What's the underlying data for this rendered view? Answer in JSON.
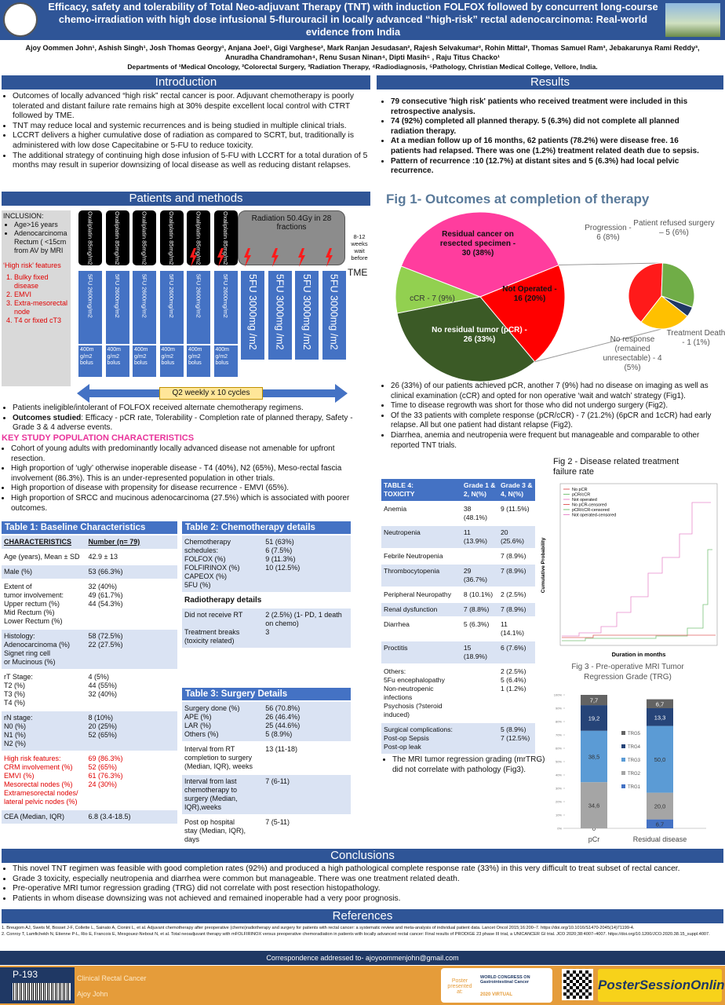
{
  "header": {
    "title": "Efficacy, safety and tolerability of Total Neo-adjuvant Therapy (TNT) with induction FOLFOX followed by concurrent long-course chemo-irradiation with high dose infusional 5-flurouracil in locally advanced “high-risk” rectal adenocarcinoma: Real-world evidence from India",
    "authors": "Ajoy Oommen John¹, Ashish Singh¹, Josh Thomas Georgy¹, Anjana Joel¹, Gigi Varghese², Mark Ranjan Jesudasan², Rajesh Selvakumar², Rohin Mittal², Thomas Samuel Ram³, Jebakarunya Rami Reddy³, Anuradha Chandramohan⁴, Renu Susan Ninan⁴, Dipti Masih⁵ , Raju Titus Chacko¹",
    "departments": "Departments of ¹Medical Oncology, ²Colorectal Surgery, ³Radiation Therapy, ⁴Radiodiagnosis, ⁵Pathology, Christian Medical College, Vellore, India."
  },
  "introduction": {
    "heading": "Introduction",
    "bullets": [
      "Outcomes of locally advanced “high risk” rectal cancer is poor. Adjuvant chemotherapy is poorly tolerated and distant failure rate remains high at 30% despite excellent local control with CTRT followed by TME.",
      "TNT may reduce local and systemic recurrences and is being studied in multiple clinical trials.",
      "LCCRT delivers a higher cumulative dose of radiation as compared to SCRT, but, traditionally is administered with low dose Capecitabine or 5-FU to reduce toxicity.",
      "The additional strategy of continuing high dose infusion of 5-FU with LCCRT for a total duration of 5 months may result in superior downsizing of local disease as well as reducing distant relapses."
    ]
  },
  "methods": {
    "heading": "Patients and methods",
    "inclusion_title": "INCLUSION:",
    "inclusion": [
      "Age>16 years",
      "Adenocarcinoma Rectum ( <15cm from AV by MRI"
    ],
    "high_risk_title": "‘High risk’ features",
    "high_risk": [
      "Bulky fixed disease",
      "EMVI",
      "Extra-mesorectal node",
      "T4 or fixed cT3"
    ],
    "oxaliplatin": [
      "Oxaliplatin 85mg/m2",
      "Oxaliplatin 85mg/m2",
      "Oxaliplatin 85mg/m2",
      "Oxaliplatin 85mg/m2",
      "Oxaliplatin 85mg/m2",
      "Oxaliplatin 85mg/m2"
    ],
    "infusion": [
      "5FU 2600mg/m2",
      "5FU 2600mg/m2",
      "5FU 2600mg/m2",
      "5FU 2600mg/m2",
      "5FU 2600mg/m2",
      "5FU 2600mg/m2"
    ],
    "bolus": [
      "400m g/m2 bolus",
      "400m g/m2 bolus",
      "400m g/m2 bolus",
      "400m g/m2 bolus",
      "400m g/m2 bolus",
      "400m g/m2 bolus"
    ],
    "radiation": "Radiation 50.4Gy in 28 fractions",
    "infusion_rt": [
      "5FU 3000mg /m2",
      "5FU 3000mg /m2",
      "5FU 3000mg /m2",
      "5FU 3000mg /m2"
    ],
    "wait": "8-12 weeks wait before",
    "tme": "TME",
    "cycles": "Q2 weekly x 10 cycles",
    "bullets": [
      "Patients ineligible/intolerant of FOLFOX received alternate chemotherapy regimens.",
      {
        "bold": "Outcomes studied",
        "text": ": Efficacy - pCR rate, Tolerability - Completion rate of planned therapy, Safety - Grade 3 & 4 adverse events."
      }
    ]
  },
  "key_characteristics": {
    "title": "KEY STUDY POPULATION CHARACTERISTICS",
    "bullets": [
      "Cohort of young adults with predominantly locally advanced disease not amenable for upfront resection.",
      "High proportion of ‘ugly’ otherwise inoperable disease - T4 (40%), N2 (65%), Meso-rectal fascia involvement (86.3%). This is an under-represented population in other trials.",
      "High proportion of disease with propensity for disease recurrence - EMVI (65%).",
      "High proportion of SRCC and mucinous adenocarcinoma (27.5%) which is associated with poorer outcomes."
    ]
  },
  "table1": {
    "title": "Table 1: Baseline Characteristics",
    "header": [
      "CHARACTERISTICS",
      "Number (n= 79)"
    ],
    "rows": [
      [
        "Age (years), Mean ± SD",
        "42.9 ± 13"
      ],
      [
        "Male (%)",
        "53 (66.3%)"
      ],
      [
        "Extent of\ntumor involvement:\nUpper rectum (%)\nMid Rectum (%)\nLower Rectum (%)",
        "32 (40%)\n49 (61.7%)\n44 (54.3%)"
      ],
      [
        "Histology:\nAdenocarcinoma (%)\nSignet ring cell\nor Mucinous (%)",
        "58 (72.5%)\n22 (27.5%)"
      ],
      [
        "rT Stage:\nT2 (%)\nT3 (%)\nT4 (%)",
        "4 (5%)\n44 (55%)\n32 (40%)"
      ],
      [
        "rN stage:\nN0 (%)\nN1 (%)\nN2 (%)",
        "8 (10%)\n20 (25%)\n52 (65%)"
      ],
      [
        "High risk features:\nCRM involvement (%)\nEMVI (%)\nMesorectal nodes (%)\nExtramesorectal nodes/\nlateral pelvic nodes (%)",
        "69 (86.3%)\n52 (65%)\n61 (76.3%)\n24 (30%)"
      ],
      [
        "CEA (Median, IQR)",
        "6.8 (3.4-18.5)"
      ]
    ]
  },
  "table2": {
    "title": "Table 2: Chemotherapy details",
    "rows": [
      [
        "Chemotherapy schedules:\nFOLFOX (%)\nFOLFIRINOX (%)\nCAPEOX (%)\n5FU (%)",
        "51 (63%)\n6 (7.5%)\n9 (11.3%)\n10 (12.5%)"
      ],
      [
        "Radiotherapy details"
      ],
      [
        "Did not receive RT\n\nTreatment breaks (toxicity related)",
        "2 (2.5%)  (1- PD, 1 death on chemo)\n3"
      ]
    ]
  },
  "table3": {
    "title": "Table 3: Surgery Details",
    "rows": [
      [
        "Surgery done (%)\nAPE (%)\nLAR (%)\nOthers (%)",
        "56 (70.8%)\n26 (46.4%)\n25 (44.6%)\n5 (8.9%)"
      ],
      [
        "Interval from RT completion to surgery (Median, IQR), weeks",
        "13 (11-18)"
      ],
      [
        "Interval from last chemotherapy to surgery (Median, IQR),weeks",
        "7 (6-11)"
      ],
      [
        "Post op hospital\nstay (Median, IQR), days",
        "7 (5-11)"
      ]
    ]
  },
  "results": {
    "heading": "Results",
    "bullets": [
      "79 consecutive 'high risk' patients who received treatment were included in this retrospective analysis.",
      "74 (92%) completed all planned therapy. 5 (6.3%) did not complete all planned radiation therapy.",
      "At a median follow up of 16 months,  62 patients (78.2%) were disease free. 16 patients had relapsed. There was one (1.2%) treatment related death due to sepsis.",
      "Pattern of recurrence :10 (12.7%) at distant sites and 5 (6.3%) had local pelvic recurrence."
    ],
    "bullets2": [
      "26 (33%) of our patients achieved pCR, another 7 (9%) had no disease on imaging as well as clinical examination (cCR) and opted for non operative ‘wait and watch’ strategy (Fig1).",
      "Time to disease regrowth was short for those who did not undergo surgery (Fig2).",
      "Of the 33 patients with complete response (pCR/cCR) - 7 (21.2%) (6pCR and 1cCR) had early relapse. All but one patient had distant relapse (Fig2).",
      "Diarrhea, anemia and neutropenia were frequent but manageable and comparable to other reported TNT trials."
    ],
    "bullets3": [
      "The MRI tumor regression grading (mrTRG) did not correlate with pathology (Fig3)."
    ]
  },
  "fig1": {
    "type": "pie",
    "title": "Fig 1- Outcomes at completion of therapy",
    "labels": [
      "Not Operated - 16 (20%)",
      "No residual tumor (pCR) - 26 (33%)",
      "cCR - 7 (9%)",
      "Residual cancer on resected specimen - 30 (38%)"
    ],
    "values": [
      20,
      33,
      9,
      38
    ],
    "colors": [
      "#ff0000",
      "#3b5a26",
      "#92d050",
      "#ff3d9e"
    ],
    "sub": {
      "labels": [
        "Progression - 6 (8%)",
        "Patient refused surgery – 5 (6%)",
        "Treatment Death - 1 (1%)",
        "No response (remained unresectable) - 4 (5%)"
      ],
      "values": [
        8,
        6,
        1,
        5
      ],
      "colors": [
        "#ff1a1a",
        "#70ad47",
        "#1f3864",
        "#ffc000"
      ]
    }
  },
  "fig2": {
    "title": "Fig 2 - Disease related treatment failure rate",
    "y_label": "Cumulative Probability",
    "x_label": "Duration in months",
    "legend": [
      "No pCR",
      "pCR/cCR",
      "Not operated",
      "No pCR-censored",
      "pCR/cCR-censored",
      "Not operated-censored"
    ]
  },
  "fig3": {
    "type": "bar",
    "stacked": true,
    "title": "Fig 3 - Pre-operative MRI Tumor Regression Grade (TRG)",
    "categories": [
      "pCr",
      "Residual disease"
    ],
    "ylim": [
      0,
      100
    ],
    "yticks": [
      {
        "value": 0,
        "label": "0%"
      },
      {
        "value": 10,
        "label": "10%"
      },
      {
        "value": 20,
        "label": "20%"
      },
      {
        "value": 30,
        "label": "30%"
      },
      {
        "value": 40,
        "label": "40%"
      },
      {
        "value": 50,
        "label": "50%"
      },
      {
        "value": 60,
        "label": "60%"
      },
      {
        "value": 70,
        "label": "70%"
      },
      {
        "value": 80,
        "label": "80%"
      },
      {
        "value": 90,
        "label": "90%"
      },
      {
        "value": 100,
        "label": "100%"
      }
    ],
    "series": [
      {
        "name": "TRG1",
        "color": "#4472c4",
        "values": [
          0,
          6.7
        ],
        "value_labels": [
          "0",
          "6,7"
        ]
      },
      {
        "name": "TRG2",
        "color": "#a5a5a5",
        "values": [
          34.6,
          20.0
        ],
        "value_labels": [
          "34,6",
          "20,0"
        ]
      },
      {
        "name": "TRG3",
        "color": "#5b9bd5",
        "values": [
          38.5,
          50.0
        ],
        "value_labels": [
          "38,5",
          "50,0"
        ]
      },
      {
        "name": "TRG4",
        "color": "#264478",
        "values": [
          19.2,
          13.3
        ],
        "value_labels": [
          "19,2",
          "13,3"
        ]
      },
      {
        "name": "TRG5",
        "color": "#636363",
        "values": [
          7.7,
          6.7
        ],
        "value_labels": [
          "7,7",
          "6,7"
        ]
      }
    ]
  },
  "table4": {
    "title": "TABLE 4:\nTOXICITY",
    "header": [
      "Grade 1 & 2, N(%)",
      "Grade 3 & 4, N(%)"
    ],
    "rows": [
      [
        "Anemia",
        "38 (48.1%)",
        "9 (11.5%)"
      ],
      [
        "Neutropenia",
        "11 (13.9%)",
        "20 (25.6%)"
      ],
      [
        "Febrile Neutropenia",
        null,
        "7 (8.9%)"
      ],
      [
        "Thrombocytopenia",
        "29 (36.7%)",
        "7 (8.9%)"
      ],
      [
        "Peripheral Neuropathy",
        "8 (10.1%)",
        "2 (2.5%)"
      ],
      [
        "Renal dysfunction",
        "7 (8.8%)",
        "7 (8.9%)"
      ],
      [
        "Diarrhea",
        "5 (6.3%)",
        "11 (14.1%)"
      ],
      [
        "Proctitis",
        "15 (18.9%)",
        "6 (7.6%)"
      ],
      [
        "Others:\n5Fu encephalopathy\nNon-neutropenic infections\nPsychosis (?steroid induced)",
        null,
        "2 (2.5%)\n5 (6.4%)\n1 (1.2%)"
      ],
      [
        "Surgical complications:\nPost-op Sepsis\nPost-op leak",
        null,
        "5 (8.9%)\n7 (12.5%)"
      ]
    ]
  },
  "conclusions": {
    "heading": "Conclusions",
    "bullets": [
      "This novel TNT regimen was feasible with good completion rates (92%) and produced a high pathological complete response rate (33%) in this very difficult to treat subset of rectal cancer.",
      "Grade 3 toxicity, especially neutropenia and diarrhea were common but manageable. There was one treatment related death.",
      "Pre-operative MRI tumor regression grading (TRG) did not correlate with post resection histopathology.",
      "Patients in whom disease downsizing was not achieved and remained inoperable had a very poor prognosis."
    ]
  },
  "references": {
    "heading": "References",
    "items": [
      "1. Breugom AJ, Swets M, Bosset J-F, Collette L, Sainato A, Cionini L, et al. Adjuvant chemotherapy after preoperative (chemo)radiotherapy and surgery for patients with rectal cancer: a systematic review and meta-analysis of individual patient data. Lancet Oncol 2015;16:200–7. https://doi.org/10.1016/S1470-2045(14)71199-4.",
      "2. Conroy T, Lamfichekh N, Etienne P-L, Rio E, Francois E, Mesgouez-Nebout N, et al. Total neoadjuvant therapy with mFOLFIRINOX versus preoperative chemoradiation in patients with locally advanced rectal cancer: Final results of PRODIGE 23 phase III trial, a UNICANCER GI trial. JCO 2020;38:4007–4007. https://doi.org/10.1200/JCO.2020.38.15_suppl.4007."
    ]
  },
  "correspondence": "Correspondence addressed to- ajoyoommenjohn@gmail.com",
  "footer": {
    "poster_id": "P-193",
    "track": "Clinical Rectal Cancer",
    "author": "Ajoy John",
    "presented": "Poster presented at:",
    "congress": "WORLD CONGRESS ON Gastrointestinal Cancer",
    "congress_year": "2020 VIRTUAL",
    "brand": "PosterSessionOnline"
  }
}
